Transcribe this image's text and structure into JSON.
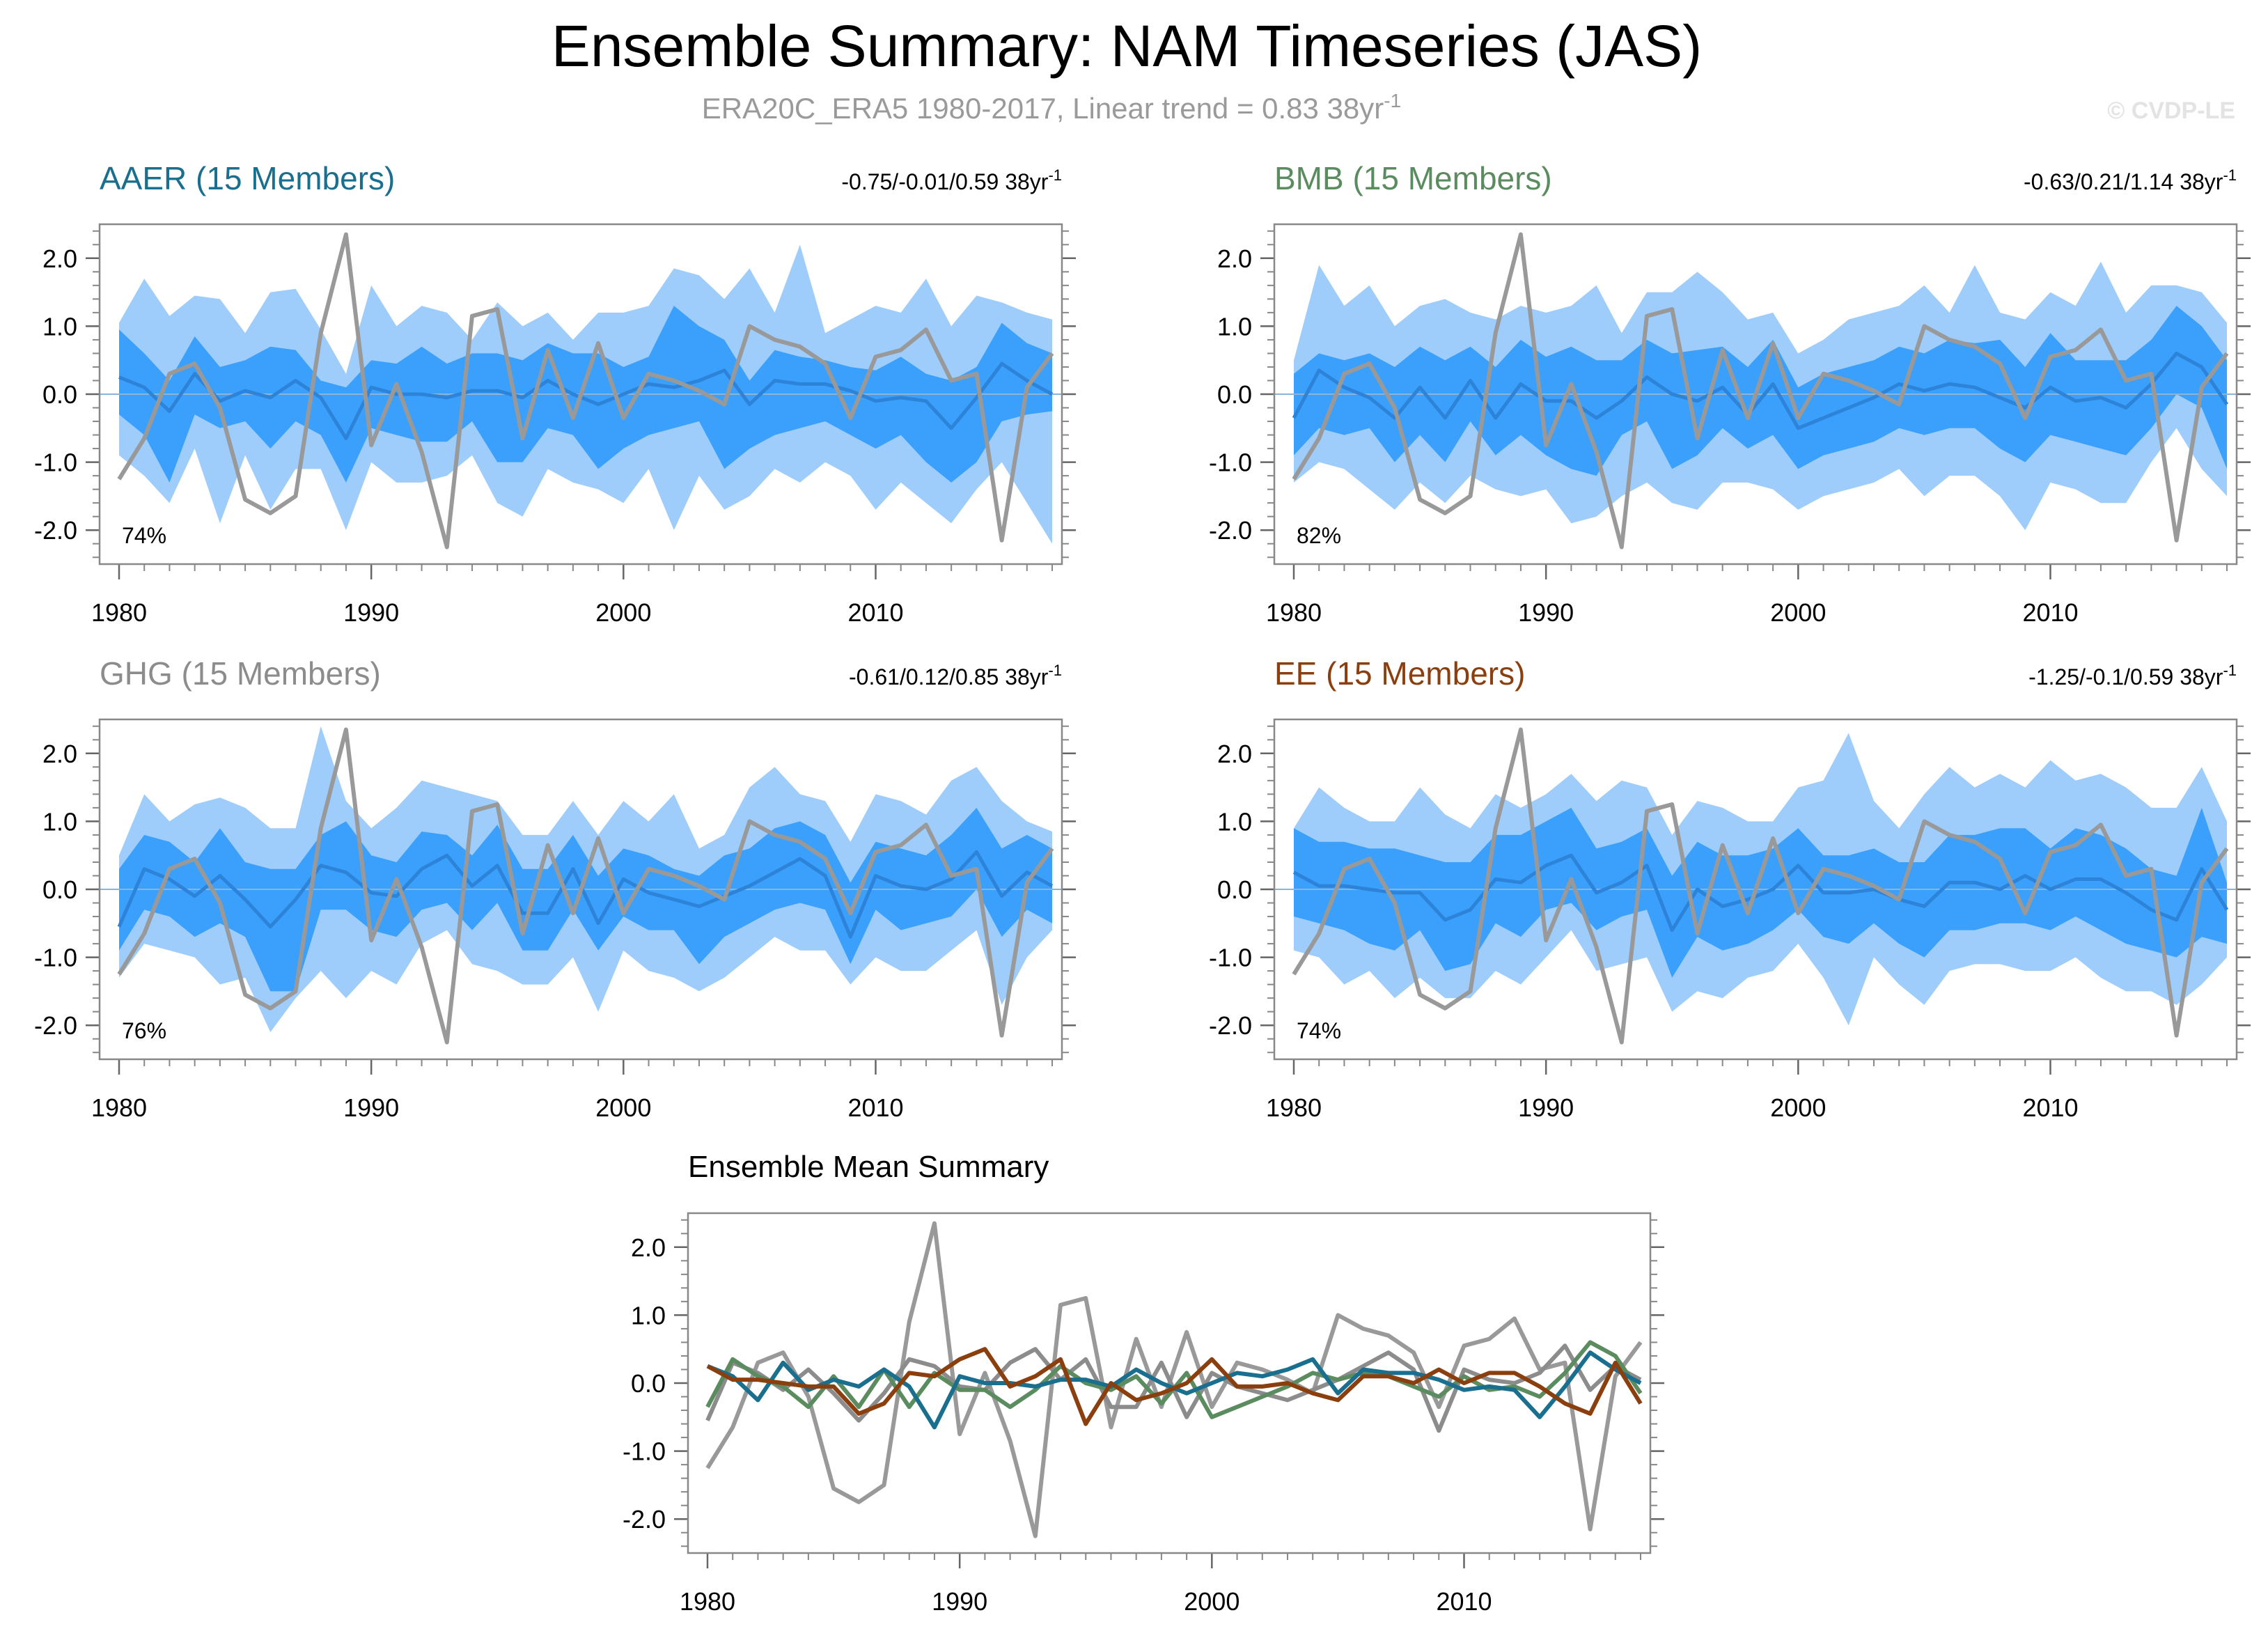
{
  "title": "Ensemble Summary: NAM Timeseries (JAS)",
  "subtitle": {
    "text": "ERA20C_ERA5 1980-2017, Linear trend = 0.83 38yr",
    "sup": "-1"
  },
  "watermark": "© CVDP-LE",
  "colors": {
    "outer_band": "#9fcdfb",
    "inner_band": "#3aa0fb",
    "ens_mean": "#2c83d8",
    "obs": "#999999",
    "zero_line": "#8ab4d9"
  },
  "chart_data": {
    "type": "line",
    "years": [
      1980,
      1981,
      1982,
      1983,
      1984,
      1985,
      1986,
      1987,
      1988,
      1989,
      1990,
      1991,
      1992,
      1993,
      1994,
      1995,
      1996,
      1997,
      1998,
      1999,
      2000,
      2001,
      2002,
      2003,
      2004,
      2005,
      2006,
      2007,
      2008,
      2009,
      2010,
      2011,
      2012,
      2013,
      2014,
      2015,
      2016,
      2017
    ],
    "xlim": [
      1980,
      2017
    ],
    "ylim": [
      -2.5,
      2.5
    ],
    "x_ticks": [
      1980,
      1990,
      2000,
      2010
    ],
    "x_tick_labels": [
      "1980",
      "1990",
      "2000",
      "2010"
    ],
    "y_ticks": [
      2,
      1,
      0,
      -1,
      -2
    ],
    "y_tick_labels": [
      "2.0",
      "1.0",
      "0.0",
      "-1.0",
      "-2.0"
    ],
    "observed": {
      "name": "ERA20C_ERA5",
      "values": [
        -1.25,
        -0.65,
        0.3,
        0.45,
        -0.2,
        -1.55,
        -1.75,
        -1.5,
        0.9,
        2.35,
        -0.75,
        0.15,
        -0.85,
        -2.25,
        1.15,
        1.25,
        -0.65,
        0.65,
        -0.35,
        0.75,
        -0.35,
        0.3,
        0.2,
        0.05,
        -0.15,
        1.0,
        0.8,
        0.7,
        0.45,
        -0.35,
        0.55,
        0.65,
        0.95,
        0.2,
        0.3,
        -2.15,
        0.1,
        0.6
      ]
    },
    "panels": [
      {
        "name": "AAER (15 Members)",
        "color": "#1a6f8f",
        "trend": {
          "text": "-0.75/-0.01/0.59 38yr",
          "sup": "-1"
        },
        "percent": "74%",
        "mean": [
          0.25,
          0.1,
          -0.25,
          0.3,
          -0.1,
          0.05,
          -0.05,
          0.2,
          -0.05,
          -0.65,
          0.1,
          0.0,
          0.0,
          -0.05,
          0.05,
          0.05,
          -0.05,
          0.2,
          0.0,
          -0.15,
          0.0,
          0.15,
          0.1,
          0.2,
          0.35,
          -0.15,
          0.2,
          0.15,
          0.15,
          0.05,
          -0.1,
          -0.05,
          -0.1,
          -0.5,
          -0.05,
          0.45,
          0.2,
          0.0
        ],
        "inner": {
          "lower": [
            -0.3,
            -0.6,
            -1.3,
            -0.3,
            -0.5,
            -0.4,
            -0.8,
            -0.4,
            -0.6,
            -1.3,
            -0.5,
            -0.6,
            -0.7,
            -0.7,
            -0.4,
            -1.0,
            -1.0,
            -0.5,
            -0.6,
            -1.1,
            -0.8,
            -0.6,
            -0.5,
            -0.4,
            -1.1,
            -0.8,
            -0.6,
            -0.5,
            -0.4,
            -0.6,
            -0.8,
            -0.6,
            -1.0,
            -1.3,
            -1.0,
            -0.4,
            -0.3,
            -0.25
          ],
          "upper": [
            0.95,
            0.6,
            0.2,
            0.85,
            0.4,
            0.5,
            0.7,
            0.65,
            0.2,
            0.1,
            0.5,
            0.45,
            0.7,
            0.45,
            0.6,
            0.6,
            0.5,
            0.75,
            0.6,
            0.6,
            0.4,
            0.55,
            1.3,
            1.0,
            0.8,
            0.2,
            0.65,
            0.55,
            0.5,
            0.4,
            0.35,
            0.55,
            0.3,
            0.2,
            0.4,
            1.05,
            0.75,
            0.6
          ]
        },
        "outer": {
          "lower": [
            -0.9,
            -1.2,
            -1.6,
            -0.8,
            -1.9,
            -0.9,
            -1.7,
            -1.1,
            -1.1,
            -2.0,
            -1.0,
            -1.3,
            -1.3,
            -1.2,
            -0.9,
            -1.6,
            -1.8,
            -1.1,
            -1.3,
            -1.4,
            -1.6,
            -1.1,
            -2.0,
            -1.2,
            -1.7,
            -1.5,
            -1.1,
            -1.3,
            -1.0,
            -1.2,
            -1.7,
            -1.3,
            -1.6,
            -1.9,
            -1.4,
            -1.0,
            -1.6,
            -2.2
          ],
          "upper": [
            1.05,
            1.7,
            1.15,
            1.45,
            1.4,
            0.9,
            1.5,
            1.55,
            0.95,
            0.3,
            1.6,
            1.0,
            1.3,
            1.2,
            0.8,
            1.35,
            1.0,
            1.2,
            0.8,
            1.2,
            1.2,
            1.3,
            1.85,
            1.75,
            1.4,
            1.85,
            1.2,
            2.2,
            0.9,
            1.1,
            1.3,
            1.2,
            1.7,
            1.0,
            1.45,
            1.35,
            1.2,
            1.1
          ]
        }
      },
      {
        "name": "BMB (15 Members)",
        "color": "#5b8c5f",
        "trend": {
          "text": "-0.63/0.21/1.14 38yr",
          "sup": "-1"
        },
        "percent": "82%",
        "mean": [
          -0.35,
          0.35,
          0.1,
          -0.05,
          -0.35,
          0.1,
          -0.35,
          0.2,
          -0.35,
          0.15,
          -0.1,
          -0.1,
          -0.35,
          -0.1,
          0.25,
          0.0,
          -0.1,
          0.1,
          -0.3,
          0.15,
          -0.5,
          -0.35,
          -0.2,
          -0.05,
          0.15,
          0.05,
          0.15,
          0.1,
          -0.05,
          -0.2,
          0.1,
          -0.1,
          -0.05,
          -0.2,
          0.15,
          0.6,
          0.4,
          -0.15
        ],
        "inner": {
          "lower": [
            -0.9,
            -0.5,
            -0.6,
            -0.5,
            -1.0,
            -0.6,
            -1.0,
            -0.4,
            -0.9,
            -0.6,
            -0.9,
            -1.1,
            -1.2,
            -0.6,
            -0.4,
            -1.1,
            -0.9,
            -0.5,
            -0.8,
            -0.6,
            -1.1,
            -0.9,
            -0.8,
            -0.7,
            -0.5,
            -0.6,
            -0.5,
            -0.5,
            -0.8,
            -1.0,
            -0.6,
            -0.7,
            -0.8,
            -0.9,
            -0.5,
            0.0,
            -0.2,
            -1.1
          ],
          "upper": [
            0.3,
            0.6,
            0.5,
            0.6,
            0.4,
            0.7,
            0.5,
            0.7,
            0.4,
            0.8,
            0.55,
            0.7,
            0.5,
            0.5,
            0.8,
            0.6,
            0.65,
            0.7,
            0.4,
            0.8,
            0.1,
            0.3,
            0.4,
            0.5,
            0.7,
            0.6,
            0.8,
            0.75,
            0.8,
            0.4,
            0.9,
            0.5,
            0.5,
            0.5,
            0.8,
            1.3,
            1.0,
            0.5
          ]
        },
        "outer": {
          "lower": [
            -1.3,
            -1.0,
            -1.1,
            -1.4,
            -1.7,
            -1.3,
            -1.6,
            -1.2,
            -1.4,
            -1.5,
            -1.4,
            -1.9,
            -1.8,
            -1.5,
            -1.3,
            -1.6,
            -1.7,
            -1.3,
            -1.3,
            -1.4,
            -1.7,
            -1.5,
            -1.4,
            -1.3,
            -1.1,
            -1.5,
            -1.2,
            -1.2,
            -1.5,
            -2.0,
            -1.3,
            -1.4,
            -1.6,
            -1.6,
            -1.0,
            -0.5,
            -1.1,
            -1.5
          ],
          "upper": [
            0.5,
            1.9,
            1.3,
            1.6,
            1.0,
            1.3,
            1.4,
            1.2,
            1.1,
            1.3,
            1.2,
            1.3,
            1.6,
            0.9,
            1.5,
            1.5,
            1.8,
            1.5,
            1.1,
            1.2,
            0.6,
            0.8,
            1.1,
            1.2,
            1.3,
            1.6,
            1.2,
            1.9,
            1.2,
            1.1,
            1.5,
            1.3,
            1.95,
            1.2,
            1.6,
            1.6,
            1.5,
            1.05
          ]
        }
      },
      {
        "name": "GHG (15 Members)",
        "color": "#8c8c8c",
        "trend": {
          "text": "-0.61/0.12/0.85 38yr",
          "sup": "-1"
        },
        "percent": "76%",
        "mean": [
          -0.55,
          0.3,
          0.15,
          -0.1,
          0.2,
          -0.15,
          -0.55,
          -0.15,
          0.35,
          0.25,
          -0.05,
          -0.1,
          0.3,
          0.5,
          0.05,
          0.35,
          -0.35,
          -0.35,
          0.3,
          -0.5,
          0.15,
          -0.05,
          -0.15,
          -0.25,
          -0.1,
          0.05,
          0.25,
          0.45,
          0.2,
          -0.7,
          0.2,
          0.05,
          0.0,
          0.15,
          0.55,
          -0.1,
          0.25,
          0.05
        ],
        "inner": {
          "lower": [
            -0.9,
            -0.3,
            -0.4,
            -0.7,
            -0.5,
            -0.7,
            -1.5,
            -1.5,
            -0.3,
            -0.3,
            -0.6,
            -0.7,
            -0.3,
            -0.2,
            -0.6,
            -0.2,
            -0.9,
            -0.9,
            -0.3,
            -0.9,
            -0.4,
            -0.6,
            -0.6,
            -1.1,
            -0.7,
            -0.5,
            -0.3,
            -0.2,
            -0.3,
            -1.1,
            -0.3,
            -0.6,
            -0.5,
            -0.4,
            0.0,
            -0.7,
            -0.3,
            -0.5
          ],
          "upper": [
            0.3,
            0.8,
            0.7,
            0.4,
            0.9,
            0.4,
            0.3,
            0.3,
            0.8,
            1.0,
            0.5,
            0.4,
            0.85,
            0.8,
            0.5,
            0.95,
            0.3,
            0.3,
            0.8,
            0.2,
            0.6,
            0.5,
            0.3,
            0.2,
            0.5,
            0.6,
            0.9,
            1.0,
            0.8,
            0.1,
            0.7,
            0.6,
            0.5,
            0.8,
            1.2,
            0.6,
            0.8,
            0.6
          ]
        },
        "outer": {
          "lower": [
            -1.3,
            -0.8,
            -0.9,
            -1.0,
            -1.4,
            -1.3,
            -2.1,
            -1.6,
            -1.2,
            -1.6,
            -1.2,
            -1.4,
            -0.8,
            -0.6,
            -1.1,
            -1.2,
            -1.4,
            -1.4,
            -1.0,
            -1.8,
            -0.9,
            -1.2,
            -1.3,
            -1.5,
            -1.3,
            -1.0,
            -0.7,
            -0.9,
            -0.9,
            -1.4,
            -1.0,
            -1.2,
            -1.2,
            -0.9,
            -0.6,
            -1.7,
            -1.0,
            -0.6
          ],
          "upper": [
            0.5,
            1.4,
            1.0,
            1.25,
            1.35,
            1.2,
            0.9,
            0.9,
            2.4,
            1.3,
            0.9,
            1.2,
            1.6,
            1.5,
            1.4,
            1.3,
            0.8,
            0.8,
            1.3,
            0.8,
            1.3,
            1.0,
            1.4,
            0.6,
            0.8,
            1.5,
            1.8,
            1.4,
            1.3,
            0.7,
            1.4,
            1.3,
            1.1,
            1.6,
            1.8,
            1.3,
            1.0,
            0.85
          ]
        }
      },
      {
        "name": "EE (15 Members)",
        "color": "#8b3f0e",
        "trend": {
          "text": "-1.25/-0.1/0.59 38yr",
          "sup": "-1"
        },
        "percent": "74%",
        "mean": [
          0.25,
          0.05,
          0.05,
          0.0,
          -0.05,
          -0.05,
          -0.45,
          -0.3,
          0.15,
          0.1,
          0.35,
          0.5,
          -0.05,
          0.1,
          0.35,
          -0.6,
          0.0,
          -0.25,
          -0.15,
          0.0,
          0.35,
          -0.05,
          -0.05,
          0.0,
          -0.15,
          -0.25,
          0.1,
          0.1,
          0.0,
          0.2,
          0.0,
          0.15,
          0.15,
          -0.05,
          -0.3,
          -0.45,
          0.3,
          -0.3
        ],
        "inner": {
          "lower": [
            -0.4,
            -0.5,
            -0.6,
            -0.8,
            -0.9,
            -0.6,
            -1.2,
            -1.1,
            -0.5,
            -0.7,
            -0.3,
            -0.2,
            -0.6,
            -0.4,
            -0.3,
            -1.3,
            -0.7,
            -0.9,
            -0.8,
            -0.6,
            -0.3,
            -0.7,
            -0.8,
            -0.5,
            -0.8,
            -1.0,
            -0.6,
            -0.6,
            -0.5,
            -0.5,
            -0.6,
            -0.4,
            -0.6,
            -0.8,
            -0.9,
            -1.0,
            -0.7,
            -0.8
          ],
          "upper": [
            0.9,
            0.7,
            0.7,
            0.6,
            0.6,
            0.5,
            0.4,
            0.4,
            0.8,
            0.8,
            1.0,
            1.2,
            0.6,
            0.7,
            0.9,
            0.2,
            0.7,
            0.5,
            0.5,
            0.6,
            0.9,
            0.5,
            0.5,
            0.6,
            0.4,
            0.4,
            0.8,
            0.8,
            0.9,
            0.9,
            0.6,
            0.9,
            0.8,
            0.6,
            0.3,
            0.2,
            1.2,
            0.1
          ]
        },
        "outer": {
          "lower": [
            -0.9,
            -1.0,
            -1.4,
            -1.2,
            -1.6,
            -1.3,
            -1.6,
            -1.6,
            -1.2,
            -1.4,
            -1.0,
            -0.6,
            -1.2,
            -1.1,
            -1.0,
            -1.8,
            -1.5,
            -1.6,
            -1.3,
            -1.2,
            -0.8,
            -1.3,
            -2.0,
            -1.0,
            -1.4,
            -1.7,
            -1.2,
            -1.1,
            -1.1,
            -1.2,
            -1.2,
            -1.0,
            -1.3,
            -1.5,
            -1.5,
            -1.7,
            -1.4,
            -1.0
          ],
          "upper": [
            0.9,
            1.5,
            1.2,
            1.0,
            1.0,
            1.5,
            1.1,
            0.9,
            1.4,
            1.2,
            1.4,
            1.7,
            1.3,
            1.6,
            1.5,
            0.8,
            1.3,
            1.2,
            1.0,
            1.0,
            1.5,
            1.6,
            2.3,
            1.3,
            0.9,
            1.4,
            1.8,
            1.5,
            1.7,
            1.5,
            1.9,
            1.6,
            1.7,
            1.5,
            1.2,
            1.2,
            1.8,
            1.0
          ]
        }
      }
    ],
    "summary": {
      "title": "Ensemble Mean Summary",
      "series_order": [
        "GHG (15 Members)",
        "BMB (15 Members)",
        "AAER (15 Members)",
        "EE (15 Members)"
      ]
    }
  }
}
